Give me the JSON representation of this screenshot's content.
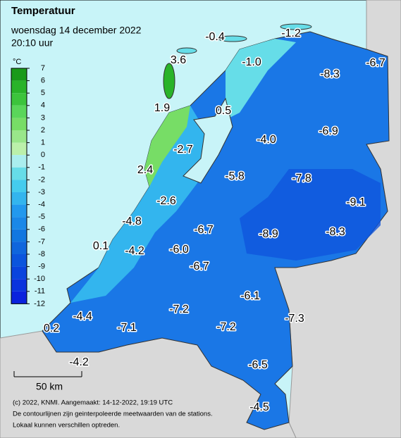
{
  "header": {
    "title": "Temperatuur",
    "date": "woensdag 14 december 2022",
    "time": "20:10 uur"
  },
  "legend": {
    "unit": "°C",
    "ticks": [
      7,
      6,
      5,
      4,
      3,
      2,
      1,
      0,
      -1,
      -2,
      -3,
      -4,
      -5,
      -6,
      -7,
      -8,
      -9,
      -10,
      -11,
      -12
    ],
    "colors": [
      "#1a9a1a",
      "#29b329",
      "#3cc43c",
      "#5ad65a",
      "#77dd66",
      "#99e68a",
      "#bbf0aa",
      "#aaeeee",
      "#66dde8",
      "#44ccee",
      "#33b5ee",
      "#2299ee",
      "#1a88e8",
      "#1177e0",
      "#0f66dd",
      "#0b55dd",
      "#0a44dd",
      "#0a33dd",
      "#0a22dd"
    ]
  },
  "stations": [
    "-1.2",
    "-0.4",
    "-6.7",
    "3.6",
    "-1.0",
    "-8.3",
    "1.9",
    "0.5",
    "-6.9",
    "-4.0",
    "-2.7",
    "2.4",
    "-5.8",
    "-7.8",
    "-2.6",
    "-9.1",
    "-4.8",
    "-8.3",
    "-6.7",
    "-8.9",
    "0.1",
    "-6.0",
    "-4.2",
    "-6.7",
    "-6.1",
    "-7.2",
    "-4.4",
    "-7.3",
    "-7.2",
    "0.2",
    "-7.1",
    "-4.2",
    "-6.5",
    "-4.5"
  ],
  "scale_label": "50 km",
  "footer": [
    "(c) 2022, KNMI. Aangemaakt: 14-12-2022, 19:19 UTC",
    "De contourlijnen zijn geinterpoleerde meetwaarden van de stations.",
    "Lokaal kunnen verschillen optreden."
  ]
}
